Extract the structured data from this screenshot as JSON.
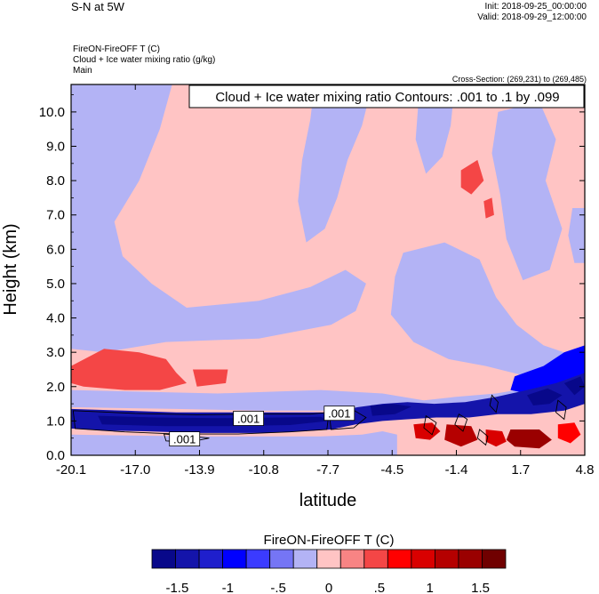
{
  "header": {
    "title": "S-N at 5W",
    "init": "Init: 2018-09-25_00:00:00",
    "valid": "Valid: 2018-09-29_12:00:00",
    "field_lines": [
      "FireON-FireOFF T   (C)",
      "Cloud + Ice water mixing ratio   (g/kg)",
      "Main"
    ],
    "cross_section": "Cross-Section: (269,231) to (269,485)"
  },
  "chart_data": {
    "type": "heatmap",
    "title": "",
    "xlabel": "latitude",
    "ylabel": "Height (km)",
    "xlim": [
      -20.1,
      4.8
    ],
    "ylim": [
      0.0,
      10.8
    ],
    "x_ticks": [
      "-20.1",
      "-17.0",
      "-13.9",
      "-10.8",
      "-7.7",
      "-4.5",
      "-1.4",
      "1.7",
      "4.8"
    ],
    "y_ticks": [
      "0.0",
      "1.0",
      "2.0",
      "3.0",
      "4.0",
      "5.0",
      "6.0",
      "7.0",
      "8.0",
      "9.0",
      "10.0"
    ],
    "contour_annotation": "Cloud + Ice water mixing ratio Contours: .001 to .1 by .099",
    "contour_labels": [
      {
        "text": ".001",
        "x": -11.5,
        "y": 1.05
      },
      {
        "text": ".001",
        "x": -14.6,
        "y": 0.45
      },
      {
        "text": ".001",
        "x": -7.1,
        "y": 1.2
      }
    ],
    "colorbar": {
      "title": "FireON-FireOFF T  (C)",
      "colors": [
        "#08088a",
        "#1414aa",
        "#1f1fcc",
        "#0000ff",
        "#3b3bff",
        "#7575f5",
        "#b3b3f5",
        "#ffc4c4",
        "#f88484",
        "#f44646",
        "#ff0000",
        "#d90000",
        "#b50000",
        "#9a0000",
        "#700000"
      ],
      "tick_labels": [
        "-1.5",
        "-1",
        "-.5",
        "0",
        ".5",
        "1",
        "1.5"
      ],
      "tick_values": [
        -1.5,
        -1.0,
        -0.5,
        0.0,
        0.5,
        1.0,
        1.5
      ]
    },
    "regions": [
      {
        "name": "upper-left-cool",
        "value": -0.3,
        "points": [
          [
            -20.1,
            10.8
          ],
          [
            -15.2,
            10.8
          ],
          [
            -15.8,
            9.5
          ],
          [
            -16.8,
            8.0
          ],
          [
            -18.0,
            6.8
          ],
          [
            -17.6,
            5.8
          ],
          [
            -16.2,
            5.0
          ],
          [
            -14.5,
            4.3
          ],
          [
            -11.0,
            4.5
          ],
          [
            -8.5,
            4.9
          ],
          [
            -6.8,
            5.4
          ],
          [
            -5.8,
            5.0
          ],
          [
            -6.3,
            4.2
          ],
          [
            -7.5,
            3.8
          ],
          [
            -11.0,
            3.4
          ],
          [
            -15.5,
            3.3
          ],
          [
            -18.5,
            3.0
          ],
          [
            -20.1,
            3.1
          ]
        ]
      },
      {
        "name": "upper-middle-cool",
        "value": -0.3,
        "points": [
          [
            -8.3,
            10.8
          ],
          [
            -5.5,
            10.8
          ],
          [
            -6.0,
            9.6
          ],
          [
            -6.7,
            8.6
          ],
          [
            -7.2,
            7.5
          ],
          [
            -7.8,
            6.6
          ],
          [
            -8.7,
            6.2
          ],
          [
            -9.1,
            7.4
          ],
          [
            -8.9,
            8.6
          ],
          [
            -8.5,
            9.8
          ]
        ]
      },
      {
        "name": "upper-right-cool-1",
        "value": -0.3,
        "points": [
          [
            -3.2,
            10.8
          ],
          [
            -1.5,
            10.8
          ],
          [
            -1.7,
            9.6
          ],
          [
            -2.1,
            8.7
          ],
          [
            -2.9,
            8.2
          ],
          [
            -3.4,
            9.2
          ]
        ]
      },
      {
        "name": "upper-right-cool-2",
        "value": -0.3,
        "points": [
          [
            0.6,
            10.0
          ],
          [
            2.6,
            10.3
          ],
          [
            3.4,
            9.2
          ],
          [
            2.9,
            8.0
          ],
          [
            3.7,
            6.6
          ],
          [
            3.1,
            5.4
          ],
          [
            1.8,
            5.1
          ],
          [
            1.0,
            6.3
          ],
          [
            0.7,
            7.6
          ],
          [
            0.3,
            8.8
          ]
        ]
      },
      {
        "name": "mid-right-cool",
        "value": -0.3,
        "points": [
          [
            -4.0,
            5.9
          ],
          [
            -2.0,
            6.2
          ],
          [
            -0.3,
            5.7
          ],
          [
            0.5,
            4.6
          ],
          [
            1.5,
            3.8
          ],
          [
            2.8,
            3.2
          ],
          [
            3.8,
            3.0
          ],
          [
            4.8,
            2.9
          ],
          [
            4.8,
            2.2
          ],
          [
            2.0,
            2.3
          ],
          [
            0.0,
            2.6
          ],
          [
            -1.8,
            2.8
          ],
          [
            -3.5,
            3.3
          ],
          [
            -4.6,
            4.1
          ],
          [
            -4.4,
            5.2
          ]
        ]
      },
      {
        "name": "right-strip-cool",
        "value": -0.3,
        "points": [
          [
            4.2,
            7.2
          ],
          [
            4.8,
            7.2
          ],
          [
            4.8,
            5.6
          ],
          [
            4.3,
            5.6
          ],
          [
            4.0,
            6.4
          ]
        ]
      },
      {
        "name": "lower-left-warm",
        "value": 0.55,
        "points": [
          [
            -20.1,
            2.6
          ],
          [
            -18.5,
            3.1
          ],
          [
            -16.8,
            3.0
          ],
          [
            -15.5,
            2.8
          ],
          [
            -15.0,
            2.4
          ],
          [
            -14.5,
            2.1
          ],
          [
            -15.8,
            1.9
          ],
          [
            -17.5,
            1.9
          ],
          [
            -19.5,
            2.0
          ],
          [
            -20.1,
            2.1
          ]
        ]
      },
      {
        "name": "lower-middle-warm",
        "value": 0.55,
        "points": [
          [
            -14.2,
            2.5
          ],
          [
            -12.5,
            2.5
          ],
          [
            -12.6,
            2.1
          ],
          [
            -14.0,
            2.0
          ]
        ]
      },
      {
        "name": "mid-cool-band",
        "value": -0.3,
        "points": [
          [
            -20.1,
            1.9
          ],
          [
            -13.0,
            1.8
          ],
          [
            -8.0,
            1.9
          ],
          [
            -5.0,
            1.8
          ],
          [
            -3.0,
            1.6
          ],
          [
            -1.5,
            1.7
          ],
          [
            0.5,
            1.8
          ],
          [
            2.5,
            2.0
          ],
          [
            4.8,
            2.2
          ],
          [
            4.8,
            1.5
          ],
          [
            2.0,
            1.4
          ],
          [
            -1.0,
            1.3
          ],
          [
            -4.0,
            1.3
          ],
          [
            -7.0,
            1.3
          ],
          [
            -11.0,
            1.3
          ],
          [
            -15.0,
            1.35
          ],
          [
            -20.1,
            1.4
          ]
        ]
      },
      {
        "name": "right-upper-cool",
        "value": -0.9,
        "points": [
          [
            1.4,
            2.3
          ],
          [
            2.8,
            2.6
          ],
          [
            3.8,
            3.0
          ],
          [
            4.8,
            3.2
          ],
          [
            4.8,
            2.2
          ],
          [
            3.6,
            1.9
          ],
          [
            2.0,
            1.8
          ],
          [
            1.2,
            1.9
          ]
        ]
      },
      {
        "name": "surface-cool",
        "value": -0.3,
        "points": [
          [
            -20.1,
            0.6
          ],
          [
            -14.0,
            0.55
          ],
          [
            -8.0,
            0.55
          ],
          [
            -6.0,
            0.6
          ],
          [
            -5.0,
            0.7
          ],
          [
            -4.3,
            0.6
          ],
          [
            -4.3,
            0.0
          ],
          [
            -20.1,
            0.0
          ]
        ]
      },
      {
        "name": "strong-cool-band",
        "value": -1.3,
        "points": [
          [
            -20.1,
            1.35
          ],
          [
            -17.5,
            1.3
          ],
          [
            -15.0,
            1.25
          ],
          [
            -12.0,
            1.25
          ],
          [
            -9.0,
            1.25
          ],
          [
            -7.5,
            1.25
          ],
          [
            -6.2,
            1.4
          ],
          [
            -5.0,
            1.5
          ],
          [
            -3.8,
            1.55
          ],
          [
            -2.5,
            1.5
          ],
          [
            -1.0,
            1.55
          ],
          [
            0.5,
            1.7
          ],
          [
            2.0,
            1.9
          ],
          [
            3.4,
            2.1
          ],
          [
            4.8,
            2.4
          ],
          [
            4.8,
            1.5
          ],
          [
            3.8,
            1.3
          ],
          [
            2.2,
            1.2
          ],
          [
            0.6,
            1.2
          ],
          [
            -0.8,
            1.1
          ],
          [
            -2.4,
            1.1
          ],
          [
            -3.8,
            1.05
          ],
          [
            -5.0,
            1.0
          ],
          [
            -6.3,
            0.9
          ],
          [
            -7.5,
            0.75
          ],
          [
            -9.0,
            0.7
          ],
          [
            -11.0,
            0.65
          ],
          [
            -14.0,
            0.65
          ],
          [
            -16.5,
            0.7
          ],
          [
            -18.5,
            0.72
          ],
          [
            -20.1,
            0.78
          ]
        ]
      },
      {
        "name": "core-cool",
        "value": -1.6,
        "points": [
          [
            -18.8,
            1.15
          ],
          [
            -16.0,
            1.1
          ],
          [
            -13.0,
            1.08
          ],
          [
            -10.0,
            1.1
          ],
          [
            -8.0,
            1.12
          ],
          [
            -7.6,
            1.0
          ],
          [
            -9.5,
            0.88
          ],
          [
            -12.5,
            0.85
          ],
          [
            -15.5,
            0.85
          ],
          [
            -18.6,
            0.9
          ]
        ]
      },
      {
        "name": "core-cool-right",
        "value": -1.6,
        "points": [
          [
            -5.6,
            1.45
          ],
          [
            -4.5,
            1.5
          ],
          [
            -3.6,
            1.42
          ],
          [
            -4.4,
            1.2
          ],
          [
            -5.5,
            1.15
          ]
        ]
      },
      {
        "name": "right-cool-blob-1",
        "value": -1.6,
        "points": [
          [
            2.0,
            1.75
          ],
          [
            3.0,
            1.95
          ],
          [
            3.7,
            1.75
          ],
          [
            3.1,
            1.5
          ],
          [
            2.3,
            1.45
          ]
        ]
      },
      {
        "name": "right-cool-blob-2",
        "value": -1.6,
        "points": [
          [
            3.8,
            2.1
          ],
          [
            4.6,
            2.3
          ],
          [
            4.8,
            2.0
          ],
          [
            4.3,
            1.75
          ]
        ]
      },
      {
        "name": "surface-warm-a",
        "value": 0.9,
        "points": [
          [
            -3.5,
            0.9
          ],
          [
            -2.6,
            0.95
          ],
          [
            -2.2,
            0.7
          ],
          [
            -2.7,
            0.45
          ],
          [
            -3.4,
            0.5
          ]
        ]
      },
      {
        "name": "surface-warm-b",
        "value": 1.1,
        "points": [
          [
            -1.9,
            0.9
          ],
          [
            -0.7,
            0.85
          ],
          [
            -0.4,
            0.45
          ],
          [
            -1.2,
            0.25
          ],
          [
            -2.0,
            0.45
          ]
        ]
      },
      {
        "name": "surface-warm-c",
        "value": 0.9,
        "points": [
          [
            0.0,
            0.75
          ],
          [
            0.8,
            0.7
          ],
          [
            1.0,
            0.4
          ],
          [
            0.5,
            0.25
          ],
          [
            0.0,
            0.4
          ]
        ]
      },
      {
        "name": "surface-warm-d",
        "value": 1.3,
        "points": [
          [
            1.2,
            0.75
          ],
          [
            2.6,
            0.75
          ],
          [
            3.2,
            0.45
          ],
          [
            2.6,
            0.2
          ],
          [
            1.4,
            0.25
          ],
          [
            1.0,
            0.45
          ]
        ]
      },
      {
        "name": "surface-warm-e",
        "value": 0.7,
        "points": [
          [
            3.5,
            0.9
          ],
          [
            4.3,
            0.95
          ],
          [
            4.6,
            0.6
          ],
          [
            4.1,
            0.35
          ],
          [
            3.5,
            0.5
          ]
        ]
      },
      {
        "name": "upper-warm-a",
        "value": 0.55,
        "points": [
          [
            -1.2,
            8.3
          ],
          [
            -0.4,
            8.6
          ],
          [
            -0.1,
            8.0
          ],
          [
            -0.7,
            7.6
          ],
          [
            -1.2,
            7.8
          ]
        ]
      },
      {
        "name": "upper-warm-b",
        "value": 0.55,
        "points": [
          [
            -0.1,
            7.4
          ],
          [
            0.3,
            7.5
          ],
          [
            0.4,
            7.0
          ],
          [
            0.0,
            6.9
          ]
        ]
      }
    ],
    "contours": [
      {
        "name": "main-band",
        "points": [
          [
            -20.0,
            1.3
          ],
          [
            -17.0,
            1.22
          ],
          [
            -14.0,
            1.18
          ],
          [
            -11.0,
            1.2
          ],
          [
            -8.5,
            1.2
          ],
          [
            -7.6,
            1.25
          ],
          [
            -7.7,
            0.75
          ],
          [
            -9.5,
            0.68
          ],
          [
            -12.0,
            0.62
          ],
          [
            -15.0,
            0.62
          ],
          [
            -17.5,
            0.68
          ],
          [
            -19.9,
            0.78
          ]
        ]
      },
      {
        "name": "lower-lobe",
        "points": [
          [
            -15.6,
            0.62
          ],
          [
            -14.2,
            0.55
          ],
          [
            -13.4,
            0.5
          ],
          [
            -14.4,
            0.38
          ],
          [
            -15.5,
            0.42
          ]
        ]
      },
      {
        "name": "right-band",
        "points": [
          [
            -7.6,
            1.3
          ],
          [
            -6.5,
            1.35
          ],
          [
            -5.8,
            1.1
          ],
          [
            -6.4,
            0.8
          ],
          [
            -7.5,
            0.75
          ]
        ]
      },
      {
        "name": "blob-1",
        "points": [
          [
            -1.3,
            1.2
          ],
          [
            -0.9,
            1.05
          ],
          [
            -1.1,
            0.7
          ],
          [
            -1.5,
            0.9
          ]
        ]
      },
      {
        "name": "blob-2",
        "points": [
          [
            0.3,
            1.75
          ],
          [
            0.6,
            1.55
          ],
          [
            0.5,
            1.25
          ],
          [
            0.2,
            1.45
          ]
        ]
      },
      {
        "name": "blob-3",
        "points": [
          [
            3.5,
            1.6
          ],
          [
            3.9,
            1.4
          ],
          [
            3.8,
            1.05
          ],
          [
            3.4,
            1.25
          ]
        ]
      },
      {
        "name": "blob-4",
        "points": [
          [
            -0.3,
            0.75
          ],
          [
            0.1,
            0.55
          ],
          [
            0.0,
            0.3
          ],
          [
            -0.4,
            0.5
          ]
        ]
      },
      {
        "name": "blob-5",
        "points": [
          [
            -2.9,
            1.15
          ],
          [
            -2.4,
            0.95
          ],
          [
            -2.6,
            0.6
          ],
          [
            -3.0,
            0.8
          ]
        ]
      }
    ]
  }
}
